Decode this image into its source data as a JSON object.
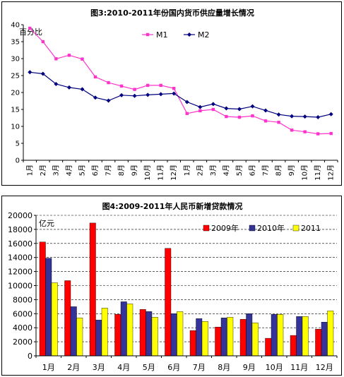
{
  "chart_data": [
    {
      "type": "line",
      "title": "图3:2010-2011年份国内货币供应量增长情况",
      "ylabel": "百分比",
      "xlabel": "",
      "ylim": [
        0,
        40
      ],
      "yticks": [
        0,
        5,
        10,
        15,
        20,
        25,
        30,
        35,
        40
      ],
      "categories": [
        "1月",
        "2月",
        "3月",
        "4月",
        "5月",
        "6月",
        "7月",
        "8月",
        "9月",
        "10月",
        "11月",
        "12月",
        "1月",
        "2月",
        "3月",
        "4月",
        "5月",
        "6月",
        "7月",
        "8月",
        "9月",
        "10月",
        "11月",
        "12月"
      ],
      "series": [
        {
          "name": "M1",
          "color": "#ff33cc",
          "marker": "square",
          "values": [
            38.96,
            34.99,
            29.94,
            30.99,
            29.85,
            24.6,
            22.9,
            21.9,
            20.9,
            22.1,
            22.1,
            21.2,
            13.8,
            14.6,
            15.0,
            12.9,
            12.7,
            13.1,
            11.6,
            11.2,
            8.9,
            8.4,
            7.8,
            7.9
          ]
        },
        {
          "name": "M2",
          "color": "#000080",
          "marker": "diamond",
          "values": [
            25.98,
            25.52,
            22.5,
            21.48,
            20.96,
            18.5,
            17.6,
            19.2,
            19.0,
            19.3,
            19.5,
            19.7,
            17.2,
            15.7,
            16.6,
            15.3,
            15.1,
            15.9,
            14.7,
            13.5,
            13.0,
            12.9,
            12.7,
            13.6
          ]
        }
      ],
      "legend": "top",
      "grid": false
    },
    {
      "type": "bar",
      "title": "图4:2009-2011年人民币新增贷款情况",
      "ylabel": "亿元",
      "xlabel": "",
      "ylim": [
        0,
        20000
      ],
      "yticks": [
        0,
        2000,
        4000,
        6000,
        8000,
        10000,
        12000,
        14000,
        16000,
        18000,
        20000
      ],
      "categories": [
        "1月",
        "2月",
        "3月",
        "4月",
        "5月",
        "6月",
        "7月",
        "8月",
        "9月",
        "10月",
        "11月",
        "12月"
      ],
      "series": [
        {
          "name": "2009年",
          "color": "#ff0000",
          "values": [
            16200,
            10700,
            18900,
            5900,
            6600,
            15300,
            3600,
            4100,
            5200,
            2500,
            2900,
            3800
          ]
        },
        {
          "name": "2010年",
          "color": "#333399",
          "values": [
            13900,
            7000,
            5100,
            7700,
            6300,
            6000,
            5300,
            5400,
            6000,
            5900,
            5600,
            4800
          ]
        },
        {
          "name": "2011",
          "color": "#ffff00",
          "values": [
            10400,
            5400,
            6800,
            7400,
            5500,
            6300,
            4900,
            5500,
            4700,
            5900,
            5600,
            6400
          ]
        }
      ],
      "legend": "top-right",
      "grid": true
    }
  ]
}
